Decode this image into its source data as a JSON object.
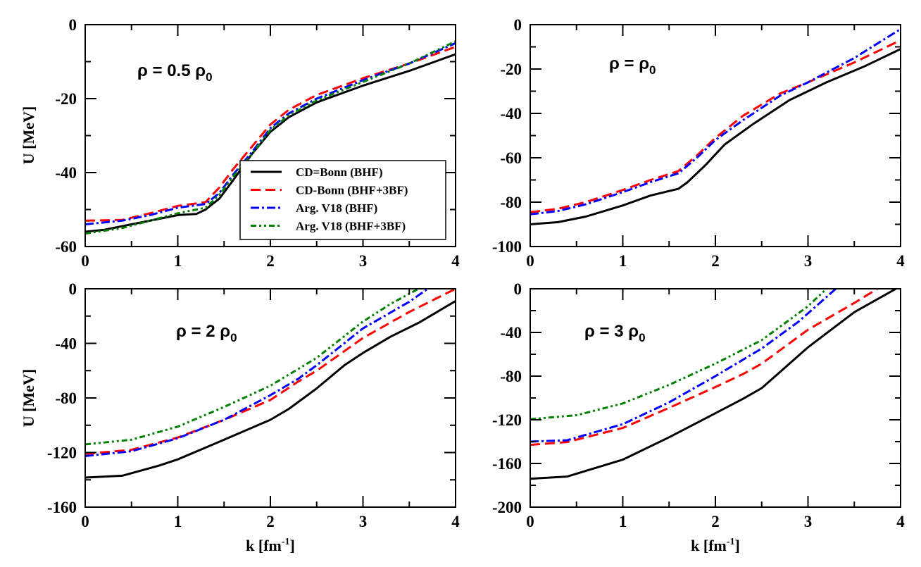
{
  "chart_data": [
    {
      "type": "line",
      "annotation": {
        "main": "ρ = 0.5 ρ",
        "sub": "0"
      },
      "ylabel": "U [MeV]",
      "xlabel": "",
      "xlim": [
        0,
        4
      ],
      "ylim": [
        -60,
        0
      ],
      "xticks": [
        0,
        1,
        2,
        3,
        4
      ],
      "xminor": 0.5,
      "yticks": [
        0,
        -20,
        -40,
        -60
      ],
      "yminor": 10,
      "legend": "center-right",
      "series": [
        {
          "name": "CD=Bonn (BHF)",
          "color": "#000000",
          "style": "solid",
          "x": [
            0,
            0.2,
            0.4,
            0.6,
            0.8,
            1.0,
            1.2,
            1.3,
            1.45,
            1.6,
            1.8,
            2.0,
            2.2,
            2.5,
            3.0,
            3.5,
            4.0
          ],
          "y": [
            -56,
            -55.5,
            -54.5,
            -53.5,
            -52.5,
            -51.5,
            -51.2,
            -50,
            -47,
            -42,
            -35,
            -29,
            -25,
            -21,
            -16.5,
            -12.5,
            -8
          ]
        },
        {
          "name": "CD-Bonn (BHF+3BF)",
          "color": "#ff0000",
          "style": "dashed",
          "x": [
            0,
            0.4,
            0.7,
            1.0,
            1.3,
            1.45,
            1.6,
            1.8,
            2.0,
            2.2,
            2.5,
            3.0,
            3.5,
            4.0
          ],
          "y": [
            -53,
            -52.8,
            -51,
            -49,
            -48,
            -44,
            -39,
            -33,
            -27,
            -23,
            -19,
            -14.5,
            -10.5,
            -6
          ]
        },
        {
          "name": "Arg. V18 (BHF)",
          "color": "#0000ff",
          "style": "dash-dot",
          "x": [
            0,
            0.4,
            0.7,
            1.0,
            1.3,
            1.45,
            1.6,
            1.8,
            2.0,
            2.2,
            2.5,
            3.0,
            3.5,
            4.0
          ],
          "y": [
            -54,
            -53,
            -51.5,
            -49.5,
            -48.5,
            -45.5,
            -40.5,
            -34.5,
            -28,
            -24,
            -20,
            -15,
            -10.5,
            -5
          ]
        },
        {
          "name": "Arg. V18 (BHF+3BF)",
          "color": "#008000",
          "style": "dash-dot-dot",
          "x": [
            0,
            0.4,
            0.7,
            1.0,
            1.3,
            1.45,
            1.6,
            1.8,
            2.0,
            2.2,
            2.5,
            3.0,
            3.5,
            4.0
          ],
          "y": [
            -56.5,
            -55,
            -53,
            -51,
            -49.5,
            -46,
            -41,
            -35,
            -28.5,
            -24.5,
            -20.5,
            -15.5,
            -10.5,
            -4.5
          ]
        }
      ]
    },
    {
      "type": "line",
      "annotation": {
        "main": "ρ =  ρ",
        "sub": "0"
      },
      "ylabel": "",
      "xlabel": "",
      "xlim": [
        0,
        4
      ],
      "ylim": [
        -100,
        0
      ],
      "xticks": [
        0,
        1,
        2,
        3,
        4
      ],
      "xminor": 0.5,
      "yticks": [
        0,
        -20,
        -40,
        -60,
        -80,
        -100
      ],
      "yminor": 10,
      "series": [
        {
          "color": "#000000",
          "style": "solid",
          "x": [
            0,
            0.3,
            0.6,
            1.0,
            1.3,
            1.6,
            1.7,
            1.9,
            2.1,
            2.4,
            2.8,
            3.2,
            3.6,
            4.0
          ],
          "y": [
            -90,
            -89,
            -86.5,
            -81.5,
            -77,
            -74,
            -71,
            -63,
            -54,
            -45,
            -34,
            -26,
            -19,
            -11
          ]
        },
        {
          "color": "#ff0000",
          "style": "dashed",
          "x": [
            0,
            0.3,
            0.6,
            1.0,
            1.3,
            1.6,
            1.8,
            2.0,
            2.3,
            2.7,
            3.0,
            3.5,
            4.0
          ],
          "y": [
            -84.5,
            -83,
            -80,
            -74.5,
            -70,
            -66,
            -59,
            -51,
            -41,
            -31,
            -26,
            -17,
            -7
          ]
        },
        {
          "color": "#0000ff",
          "style": "dash-dot",
          "x": [
            0,
            0.3,
            0.6,
            1.0,
            1.3,
            1.6,
            1.8,
            2.0,
            2.3,
            2.7,
            3.0,
            3.5,
            4.0
          ],
          "y": [
            -85.5,
            -84,
            -81,
            -75.5,
            -71,
            -67,
            -60,
            -52,
            -43,
            -32,
            -26,
            -15,
            -2
          ]
        }
      ]
    },
    {
      "type": "line",
      "annotation": {
        "main": "ρ = 2 ρ",
        "sub": "0"
      },
      "ylabel": "U [MeV]",
      "xlabel": "k [fm",
      "xlabel_sup": "-1",
      "xlabel_end": "]",
      "xlim": [
        0,
        4
      ],
      "ylim": [
        -160,
        0
      ],
      "xticks": [
        0,
        1,
        2,
        3,
        4
      ],
      "xminor": 0.5,
      "yticks": [
        0,
        -40,
        -80,
        -120,
        -160
      ],
      "yminor": 20,
      "series": [
        {
          "color": "#000000",
          "style": "solid",
          "x": [
            0,
            0.4,
            0.8,
            1.0,
            1.5,
            2.0,
            2.2,
            2.5,
            2.8,
            3.0,
            3.3,
            3.6,
            4.0
          ],
          "y": [
            -138.3,
            -137,
            -129.5,
            -125,
            -110.6,
            -96,
            -88,
            -73,
            -56,
            -47,
            -35,
            -25,
            -9
          ]
        },
        {
          "color": "#ff0000",
          "style": "dashed",
          "x": [
            0,
            0.5,
            1.0,
            1.5,
            2.0,
            2.3,
            2.5,
            3.0,
            3.5,
            4.0
          ],
          "y": [
            -121,
            -118,
            -109,
            -96,
            -81.5,
            -68,
            -60,
            -36,
            -17,
            0
          ]
        },
        {
          "color": "#0000ff",
          "style": "dash-dot",
          "x": [
            0,
            0.5,
            1.0,
            1.5,
            2.0,
            2.3,
            2.5,
            3.0,
            3.5,
            3.7
          ],
          "y": [
            -122.6,
            -119,
            -109.5,
            -96,
            -78,
            -66,
            -56,
            -29,
            -9.5,
            0
          ]
        },
        {
          "color": "#008000",
          "style": "dash-dot-dot",
          "x": [
            0,
            0.5,
            1.0,
            1.5,
            2.0,
            2.5,
            3.0,
            3.3,
            3.6
          ],
          "y": [
            -114,
            -110.6,
            -101,
            -86.6,
            -71,
            -50.6,
            -24,
            -11,
            0
          ]
        }
      ]
    },
    {
      "type": "line",
      "annotation": {
        "main": "ρ = 3 ρ",
        "sub": "0"
      },
      "ylabel": "",
      "xlabel": "k [fm",
      "xlabel_sup": "-1",
      "xlabel_end": "]",
      "xlim": [
        0,
        4
      ],
      "ylim": [
        -200,
        0
      ],
      "xticks": [
        0,
        1,
        2,
        3,
        4
      ],
      "xminor": 0.5,
      "yticks": [
        0,
        -40,
        -80,
        -120,
        -160,
        -200
      ],
      "yminor": 20,
      "series": [
        {
          "color": "#000000",
          "style": "solid",
          "x": [
            0,
            0.4,
            1.0,
            1.5,
            2.0,
            2.3,
            2.5,
            3.0,
            3.5,
            3.95
          ],
          "y": [
            -174,
            -172,
            -156.5,
            -136,
            -114,
            -100.7,
            -91,
            -53.6,
            -21.4,
            0
          ]
        },
        {
          "color": "#ff0000",
          "style": "dashed",
          "x": [
            0,
            0.4,
            1.0,
            1.5,
            2.0,
            2.3,
            2.5,
            3.0,
            3.5,
            3.75
          ],
          "y": [
            -143,
            -140.4,
            -127.5,
            -109,
            -90,
            -78,
            -68.6,
            -37.5,
            -13,
            0
          ]
        },
        {
          "color": "#0000ff",
          "style": "dash-dot",
          "x": [
            0,
            0.4,
            1.0,
            1.5,
            2.0,
            2.5,
            2.9,
            3.3
          ],
          "y": [
            -140,
            -138.7,
            -124,
            -104,
            -80,
            -54.7,
            -30,
            0
          ]
        },
        {
          "color": "#008000",
          "style": "dash-dot-dot",
          "x": [
            0,
            0.5,
            1.0,
            1.5,
            2.0,
            2.5,
            3.0,
            3.2
          ],
          "y": [
            -119.4,
            -115.8,
            -105,
            -88,
            -68.6,
            -47,
            -16,
            0
          ]
        }
      ]
    }
  ]
}
